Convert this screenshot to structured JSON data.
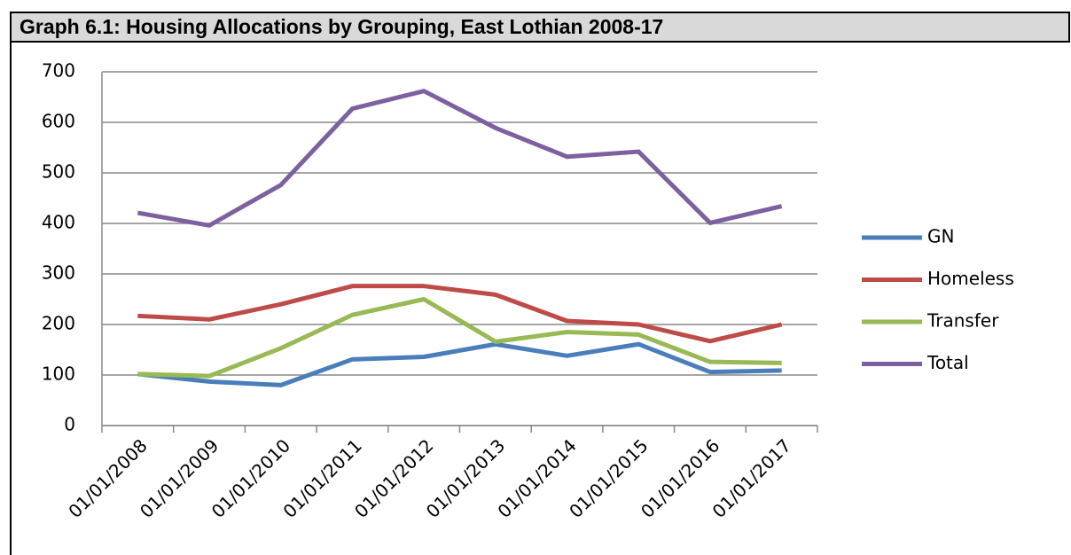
{
  "chart_data": {
    "type": "line",
    "title": "Graph 6.1: Housing Allocations by Grouping, East Lothian 2008-17",
    "categories": [
      "01/01/2008",
      "01/01/2009",
      "01/01/2010",
      "01/01/2011",
      "01/01/2012",
      "01/01/2013",
      "01/01/2014",
      "01/01/2015",
      "01/01/2016",
      "01/01/2017"
    ],
    "series": [
      {
        "name": "GN",
        "color": "#4a7ebb",
        "values": [
          102,
          87,
          80,
          131,
          136,
          161,
          138,
          161,
          106,
          109
        ]
      },
      {
        "name": "Homeless",
        "color": "#be4b48",
        "values": [
          217,
          210,
          240,
          276,
          276,
          259,
          207,
          200,
          167,
          200
        ]
      },
      {
        "name": "Transfer",
        "color": "#98b954",
        "values": [
          102,
          98,
          153,
          219,
          250,
          166,
          185,
          180,
          126,
          124
        ]
      },
      {
        "name": "Total",
        "color": "#7d60a0",
        "values": [
          421,
          396,
          476,
          627,
          662,
          589,
          532,
          542,
          401,
          434
        ]
      }
    ],
    "ylim": [
      0,
      700
    ],
    "yticks": [
      0,
      100,
      200,
      300,
      400,
      500,
      600,
      700
    ],
    "grid": true,
    "legend": "right"
  }
}
